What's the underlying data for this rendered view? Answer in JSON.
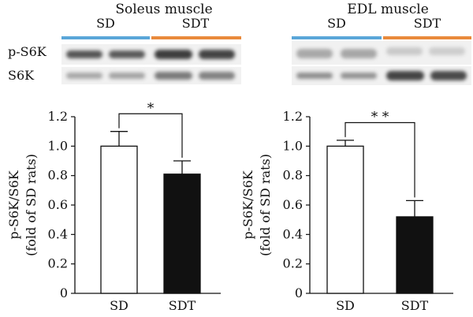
{
  "colors": {
    "sd_line": "#5aa6d8",
    "sdt_line": "#e98a3c",
    "bar_sd": "#ffffff",
    "bar_sdt": "#111111"
  },
  "blot_rows": [
    "p-S6K",
    "S6K"
  ],
  "blots": [
    {
      "title": "Soleus muscle",
      "groups": [
        "SD",
        "SDT"
      ],
      "bands": {
        "p-S6K": [
          "#555555",
          "#5a5a5a",
          "#3d3d3d",
          "#444444"
        ],
        "S6K": [
          "#a8a8a8",
          "#a4a4a4",
          "#7a7a7a",
          "#828282"
        ]
      }
    },
    {
      "title": "EDL muscle",
      "groups": [
        "SD",
        "SDT"
      ],
      "bands": {
        "p-S6K": [
          "#a9a9a9",
          "#a7a7a7",
          "#c9c9c9",
          "#cdcdcd"
        ],
        "S6K": [
          "#8f8f8f",
          "#939393",
          "#444444",
          "#4a4a4a"
        ]
      }
    }
  ],
  "chart_data": [
    {
      "type": "bar",
      "categories": [
        "SD",
        "SDT"
      ],
      "values": [
        1.0,
        0.81
      ],
      "errors": [
        0.1,
        0.09
      ],
      "ylabel_lines": [
        "p-S6K/S6K",
        "(fold of SD rats)"
      ],
      "ylim": [
        0,
        1.2
      ],
      "yticks": [
        "0",
        "0.2",
        "0.4",
        "0.6",
        "0.8",
        "1.0",
        "1.2"
      ],
      "significance": {
        "pair": [
          0,
          1
        ],
        "label": "*"
      }
    },
    {
      "type": "bar",
      "categories": [
        "SD",
        "SDT"
      ],
      "values": [
        1.0,
        0.52
      ],
      "errors": [
        0.04,
        0.11
      ],
      "ylabel_lines": [
        "p-S6K/S6K",
        "(fold of SD rats)"
      ],
      "ylim": [
        0,
        1.2
      ],
      "yticks": [
        "0",
        "0.2",
        "0.4",
        "0.6",
        "0.8",
        "1.0",
        "1.2"
      ],
      "significance": {
        "pair": [
          0,
          1
        ],
        "label": "* *"
      }
    }
  ]
}
